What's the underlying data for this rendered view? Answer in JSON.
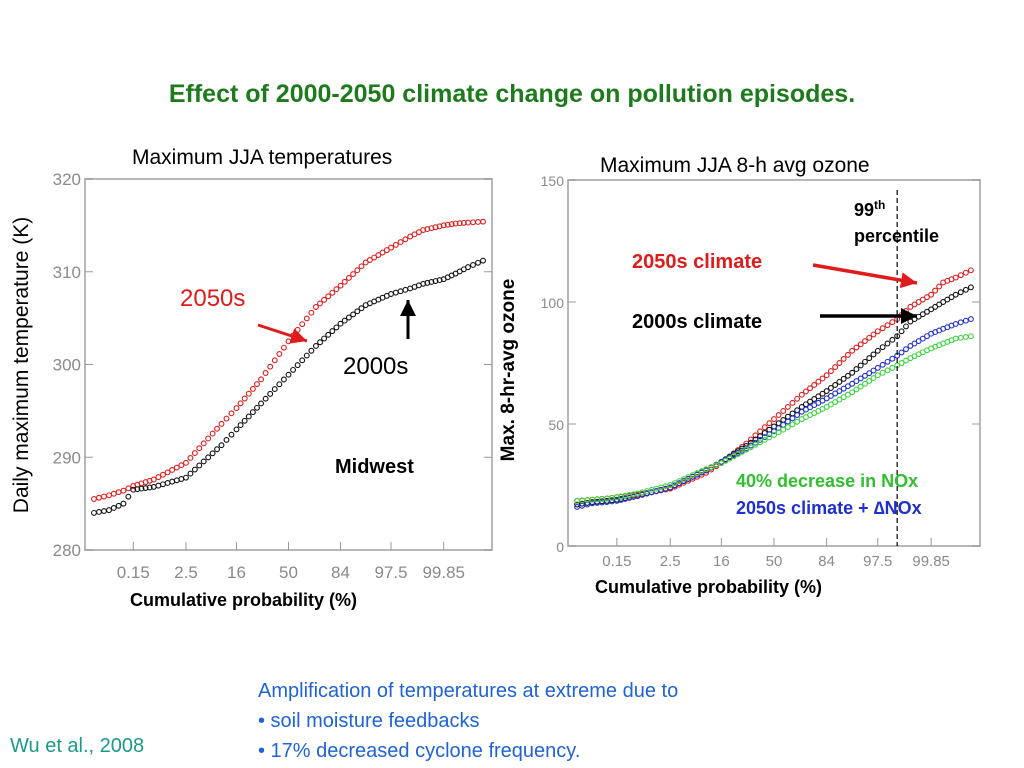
{
  "slide": {
    "title": "Effect of 2000-2050 climate change on pollution episodes.",
    "bullets": [
      "Amplification of temperatures at extreme due to",
      "• soil moisture feedbacks",
      "• 17% decreased cyclone frequency."
    ],
    "citation": "Wu et al., 2008"
  },
  "colors": {
    "red": "#e01b1b",
    "black": "#111111",
    "blue": "#1f2fd0",
    "green": "#3cd43c",
    "title_green": "#1d7a1d",
    "bullet_blue": "#1f63d6"
  },
  "chart_data": [
    {
      "type": "scatter",
      "title": "Maximum JJA temperatures",
      "xlabel": "Cumulative probability (%)",
      "ylabel": "Daily maximum temperature (K)",
      "xtick_labels": [
        "0.15",
        "2.5",
        "16",
        "50",
        "84",
        "97.5",
        "99.85"
      ],
      "x_scale": "normal-probability",
      "ylim": [
        280,
        320
      ],
      "yticks": [
        280,
        290,
        300,
        310,
        320
      ],
      "region_label": "Midwest",
      "series": [
        {
          "name": "2050s",
          "color": "#e01b1b",
          "x": [
            0.01,
            0.03,
            0.08,
            0.15,
            0.5,
            2.5,
            10,
            16,
            30,
            50,
            70,
            84,
            93,
            97.5,
            99,
            99.5,
            99.85,
            99.93,
            99.97,
            99.99
          ],
          "y": [
            285.5,
            285.9,
            286.4,
            286.9,
            287.6,
            289.4,
            293.6,
            295.3,
            298.4,
            302.5,
            306.2,
            308.5,
            311.0,
            312.6,
            313.8,
            314.5,
            315.0,
            315.2,
            315.3,
            315.4
          ]
        },
        {
          "name": "2000s",
          "color": "#111111",
          "x": [
            0.01,
            0.03,
            0.08,
            0.15,
            0.5,
            2.5,
            10,
            16,
            30,
            50,
            70,
            84,
            93,
            97.5,
            99,
            99.5,
            99.85,
            99.93,
            99.97,
            99.99
          ],
          "y": [
            284.0,
            284.3,
            285.0,
            286.5,
            286.8,
            287.8,
            291.3,
            293.0,
            295.8,
            298.9,
            302.0,
            304.4,
            306.4,
            307.6,
            308.2,
            308.7,
            309.2,
            309.8,
            310.5,
            311.2
          ]
        }
      ],
      "annotations": [
        "2050s",
        "2000s"
      ]
    },
    {
      "type": "scatter",
      "title": "Maximum JJA 8-h avg ozone",
      "xlabel": "Cumulative probability (%)",
      "ylabel": "Max. 8-hr-avg ozone",
      "xtick_labels": [
        "0.15",
        "2.5",
        "16",
        "50",
        "84",
        "97.5",
        "99.85"
      ],
      "x_scale": "normal-probability",
      "ylim": [
        0,
        150
      ],
      "yticks": [
        0,
        50,
        100,
        150
      ],
      "percentile_line": 99,
      "series": [
        {
          "name": "2050s climate",
          "color": "#e01b1b",
          "x": [
            0.01,
            0.03,
            0.08,
            0.15,
            0.5,
            2.5,
            10,
            16,
            30,
            50,
            70,
            84,
            93,
            97.5,
            99,
            99.5,
            99.85,
            99.93,
            99.97,
            99.99
          ],
          "y": [
            18.5,
            19.0,
            19.5,
            20.0,
            21.0,
            23.5,
            30.0,
            34.0,
            42.0,
            52.0,
            62.0,
            70.0,
            80.0,
            88.0,
            93.0,
            98.0,
            103.0,
            108.0,
            110.0,
            113.0
          ]
        },
        {
          "name": "2000s climate",
          "color": "#111111",
          "x": [
            0.01,
            0.03,
            0.08,
            0.15,
            0.5,
            2.5,
            10,
            16,
            30,
            50,
            70,
            84,
            93,
            97.5,
            99,
            99.5,
            99.85,
            99.93,
            99.97,
            99.99
          ],
          "y": [
            17.0,
            18.0,
            18.5,
            19.0,
            20.5,
            24.0,
            31.0,
            34.5,
            41.0,
            49.0,
            57.0,
            63.5,
            71.0,
            80.0,
            86.0,
            92.0,
            97.0,
            100.0,
            103.0,
            106.0
          ]
        },
        {
          "name": "2050s climate + ΔNOx",
          "color": "#1f2fd0",
          "x": [
            0.01,
            0.03,
            0.08,
            0.15,
            0.5,
            2.5,
            10,
            16,
            30,
            50,
            70,
            84,
            93,
            97.5,
            99,
            99.5,
            99.85,
            99.93,
            99.97,
            99.99
          ],
          "y": [
            16.0,
            17.5,
            18.0,
            18.5,
            20.5,
            24.0,
            31.0,
            34.5,
            40.0,
            47.0,
            55.0,
            60.5,
            66.5,
            73.0,
            78.0,
            82.0,
            87.0,
            89.0,
            91.0,
            93.0
          ]
        },
        {
          "name": "40% decrease in NOx",
          "color": "#3cd43c",
          "x": [
            0.01,
            0.03,
            0.08,
            0.15,
            0.5,
            2.5,
            10,
            16,
            30,
            50,
            70,
            84,
            93,
            97.5,
            99,
            99.5,
            99.85,
            99.93,
            99.97,
            99.99
          ],
          "y": [
            18.5,
            19.0,
            19.5,
            20.0,
            21.5,
            25.0,
            31.5,
            34.0,
            39.5,
            45.5,
            52.0,
            57.0,
            63.0,
            70.0,
            74.0,
            77.0,
            81.0,
            83.0,
            85.0,
            86.0
          ]
        }
      ],
      "annotations": {
        "percentile_base": "99",
        "percentile_sup": "th",
        "percentile_word": "percentile",
        "label_2050s": "2050s climate",
        "label_2000s": "2000s climate",
        "label_nox": "40% decrease in NOx",
        "label_dnox": "2050s climate + ∆NOx"
      }
    }
  ]
}
